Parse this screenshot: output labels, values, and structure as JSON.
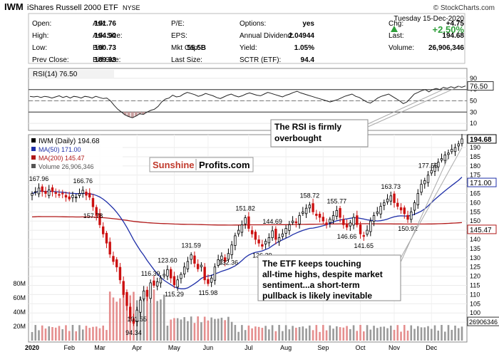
{
  "header": {
    "symbol": "IWM",
    "name": "iShares Russell 2000 ETF",
    "exchange": "NYSE",
    "date": "Tuesday  15-Dec-2020",
    "watermark": "© StockCharts.com",
    "change_pct": "+2.50%",
    "up_icon": "triangle-up-icon",
    "up_color": "#2e9e3a"
  },
  "quote_table": [
    [
      {
        "k": "Open:",
        "v": "191.76"
      },
      {
        "k": "Ask:",
        "v": ""
      },
      {
        "k": "P/E:",
        "v": ""
      },
      {
        "k": "Options:",
        "v": "yes"
      },
      {
        "k": "Chg:",
        "v": "+4.75"
      }
    ],
    [
      {
        "k": "High:",
        "v": "194.90"
      },
      {
        "k": "Ask Size:",
        "v": ""
      },
      {
        "k": "EPS:",
        "v": ""
      },
      {
        "k": "Annual Dividend:",
        "v": "2.04944"
      },
      {
        "k": "Last:",
        "v": "194.68"
      }
    ],
    [
      {
        "k": "Low:",
        "v": "190.73"
      },
      {
        "k": "Bid:",
        "v": ""
      },
      {
        "k": "Mkt Cap:",
        "v": "55.5B"
      },
      {
        "k": "Yield:",
        "v": "1.05%"
      },
      {
        "k": "Volume:",
        "v": "26,906,346"
      }
    ],
    [
      {
        "k": "Prev Close:",
        "v": "189.93"
      },
      {
        "k": "Bid Size:",
        "v": ""
      },
      {
        "k": "Last Size:",
        "v": ""
      },
      {
        "k": "SCTR (ETF):",
        "v": "94.4"
      },
      {
        "k": "",
        "v": ""
      }
    ]
  ],
  "chart_data": [
    {
      "type": "line",
      "title": "RSI(14) 76.50",
      "ylim": [
        0,
        100
      ],
      "y_ticks": [
        10,
        30,
        50,
        70,
        90
      ],
      "guides": [
        30,
        70
      ],
      "dash_line": 50,
      "last_value": "76.50",
      "series": [
        {
          "values": [
            58,
            57,
            58,
            56,
            58,
            57,
            55,
            57,
            59,
            56,
            58,
            55,
            58,
            57,
            55,
            58,
            57,
            55,
            58,
            56,
            54,
            55,
            50,
            42,
            35,
            30,
            25,
            22,
            20,
            23,
            27,
            26,
            30,
            33,
            35,
            40,
            48,
            53,
            55,
            60,
            57,
            58,
            62,
            65,
            63,
            61,
            58,
            60,
            63,
            61,
            59,
            56,
            54,
            57,
            60,
            62,
            59,
            57,
            59,
            62,
            64,
            62,
            60,
            59,
            62,
            65,
            63,
            61,
            59,
            57,
            60,
            62,
            65,
            67,
            64,
            62,
            60,
            58,
            56,
            54,
            52,
            50,
            48,
            50,
            52,
            55,
            58,
            60,
            62,
            58,
            56,
            52,
            48,
            46,
            50,
            55,
            58,
            60,
            62,
            58,
            54,
            50,
            45,
            48,
            55,
            62,
            65,
            68,
            70,
            66,
            70,
            72,
            70,
            74,
            72,
            75,
            73,
            76,
            74,
            76.5
          ]
        }
      ]
    },
    {
      "type": "candlestick",
      "title": "IWM (Daily) 194.68",
      "ylim": [
        90,
        197
      ],
      "y_ticks": [
        95,
        100,
        105,
        110,
        115,
        120,
        125,
        130,
        135,
        140,
        145,
        150,
        155,
        160,
        165,
        170,
        175,
        180,
        185,
        190
      ],
      "x_ticks": [
        "2020",
        "Feb",
        "Mar",
        "Apr",
        "May",
        "Jun",
        "Jul",
        "Aug",
        "Sep",
        "Oct",
        "Nov",
        "Dec"
      ],
      "close": [
        165,
        166,
        167.96,
        166,
        165,
        167,
        166,
        165,
        164,
        165,
        163,
        162,
        164,
        163,
        165,
        166.76,
        164,
        163,
        157.78,
        153,
        148,
        143,
        138,
        132,
        128,
        125,
        118,
        110,
        104,
        97,
        94.34,
        101.55,
        107,
        112,
        109,
        116.39,
        115,
        117,
        119,
        121,
        123.6,
        119,
        115.29,
        118,
        121,
        125,
        128,
        131.59,
        127,
        124,
        126,
        118,
        115.98,
        119,
        125,
        129,
        131,
        128,
        132.36,
        137,
        142,
        145,
        148,
        151.82,
        146,
        143,
        140,
        138,
        136.29,
        139,
        141,
        144.69,
        140,
        141,
        143,
        146,
        148,
        150,
        149,
        153,
        155,
        157,
        158.72,
        155,
        153,
        152,
        150,
        148,
        151,
        153,
        155.77,
        152,
        148,
        146.66,
        149,
        152,
        148,
        143,
        141.65,
        145,
        150,
        153,
        155,
        158,
        160,
        162,
        163.73,
        160,
        158,
        156,
        154,
        150.92,
        155,
        160,
        165,
        170,
        172,
        175,
        177.55,
        180,
        182,
        184,
        186,
        187,
        189,
        190,
        192,
        194.68
      ],
      "labels": [
        {
          "t": "167.96",
          "i": 2,
          "pos": "above"
        },
        {
          "t": "166.76",
          "i": 15,
          "pos": "above"
        },
        {
          "t": "157.78",
          "i": 18,
          "pos": "below"
        },
        {
          "t": "116.39",
          "i": 35,
          "pos": "above"
        },
        {
          "t": "101.55",
          "i": 31,
          "pos": "below"
        },
        {
          "t": "94.34",
          "i": 30,
          "pos": "below"
        },
        {
          "t": "123.60",
          "i": 40,
          "pos": "above"
        },
        {
          "t": "115.29",
          "i": 42,
          "pos": "below"
        },
        {
          "t": "131.59",
          "i": 47,
          "pos": "above"
        },
        {
          "t": "115.98",
          "i": 52,
          "pos": "below"
        },
        {
          "t": "151.82",
          "i": 63,
          "pos": "above"
        },
        {
          "t": "132.36",
          "i": 58,
          "pos": "below"
        },
        {
          "t": "136.29",
          "i": 68,
          "pos": "below"
        },
        {
          "t": "144.69",
          "i": 71,
          "pos": "above"
        },
        {
          "t": "158.72",
          "i": 82,
          "pos": "above"
        },
        {
          "t": "155.77",
          "i": 90,
          "pos": "above"
        },
        {
          "t": "146.66",
          "i": 93,
          "pos": "below"
        },
        {
          "t": "141.65",
          "i": 98,
          "pos": "below"
        },
        {
          "t": "163.73",
          "i": 106,
          "pos": "above"
        },
        {
          "t": "150.92",
          "i": 111,
          "pos": "below"
        },
        {
          "t": "177.55",
          "i": 117,
          "pos": "above"
        }
      ],
      "legend": [
        {
          "text": "IWM (Daily) 194.68",
          "color": "#000000"
        },
        {
          "text": "MA(50) 171.00",
          "color": "#1f2fa8"
        },
        {
          "text": "MA(200) 145.47",
          "color": "#b01818"
        },
        {
          "text": "Volume 26,906,346",
          "color": "#555555"
        }
      ],
      "axis_tags": [
        {
          "text": "194.68",
          "value": 194.68,
          "style": "price"
        },
        {
          "text": "171.00",
          "value": 171.0,
          "style": "ma50"
        },
        {
          "text": "145.47",
          "value": 145.47,
          "style": "ma200"
        }
      ],
      "volume_ticks": [
        {
          "text": "80M",
          "value": 80
        },
        {
          "text": "60M",
          "value": 60
        },
        {
          "text": "40M",
          "value": 40
        },
        {
          "text": "20M",
          "value": 20
        }
      ],
      "volume_tag": "26906346",
      "colors": {
        "up": "#000000",
        "down": "#cc1111",
        "ma50": "#1f2fa8",
        "ma200": "#b01818",
        "vol_up": "#9a9a9a",
        "vol_down": "#e58e8e"
      }
    }
  ],
  "logo": {
    "part1": "Sunshine",
    "part2": "Profits.com"
  },
  "annotations": [
    {
      "id": "rsi-note",
      "lines": [
        "The RSI is firmly",
        "overbought"
      ]
    },
    {
      "id": "price-note",
      "lines": [
        "The ETF keeps touching",
        "all-time highs, despite market",
        "sentiment...a short-term",
        "pullback is likely inevitable"
      ]
    }
  ]
}
